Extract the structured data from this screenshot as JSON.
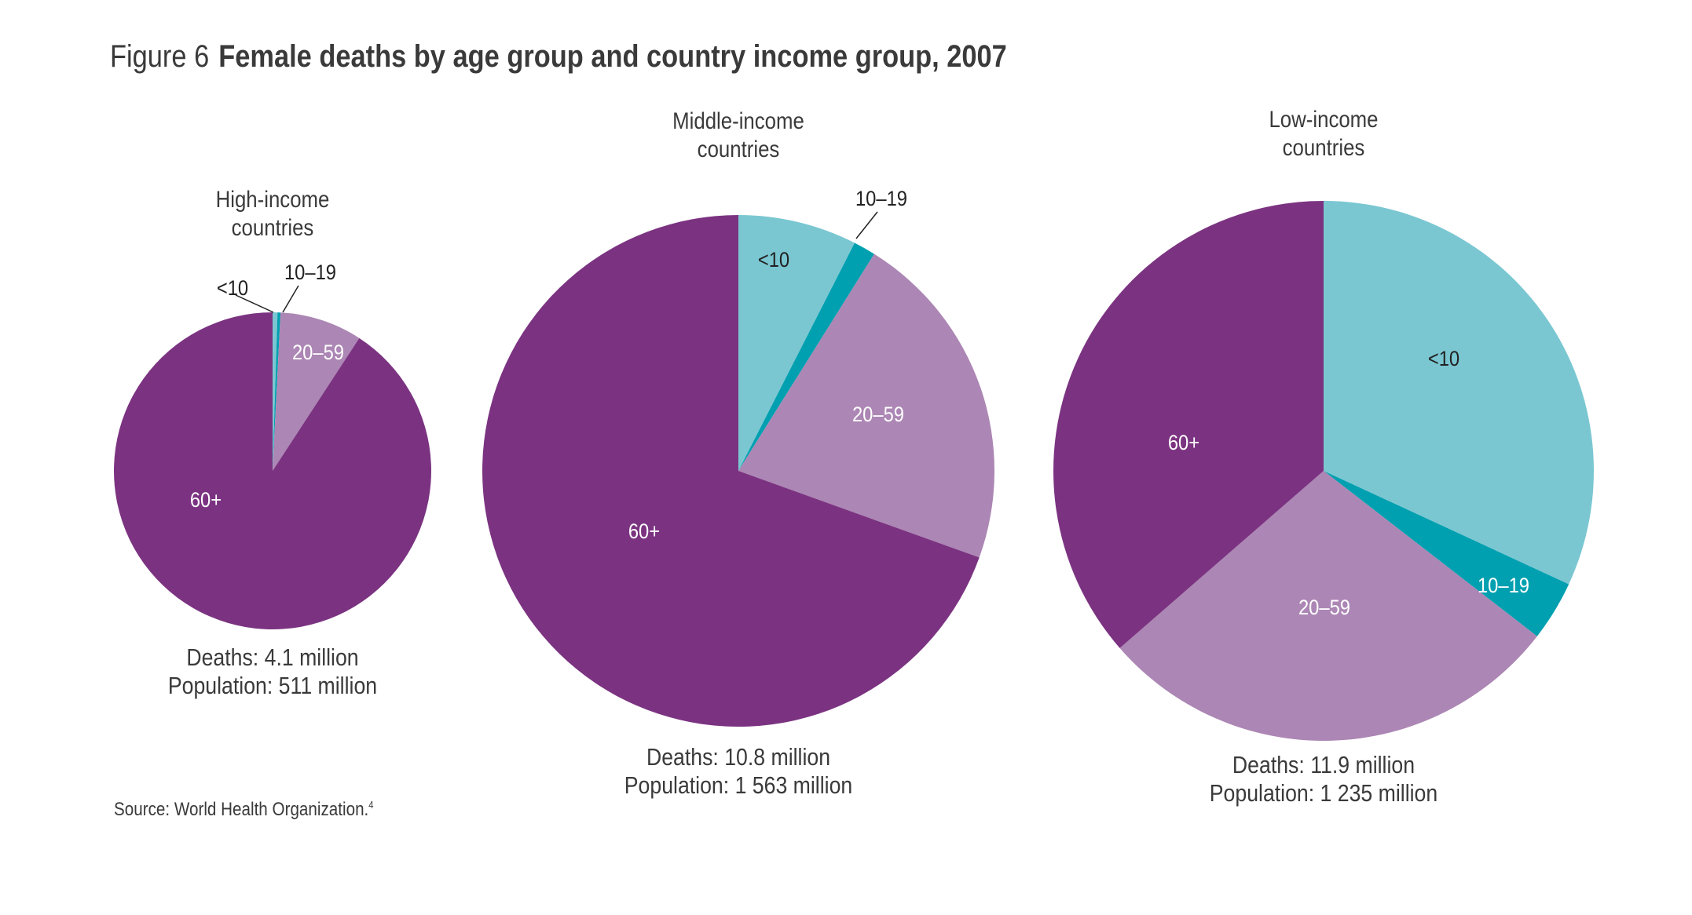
{
  "figure": {
    "number_label": "Figure 6",
    "title": "Female deaths by age group and country income group, 2007",
    "source_text": "Source: World Health Organization.",
    "source_ref": "4"
  },
  "chart_data": [
    {
      "type": "pie",
      "title_lines": [
        "High-income",
        "countries"
      ],
      "categories": [
        "<10",
        "10–19",
        "20–59",
        "60+"
      ],
      "values": [
        0.5,
        0.3,
        8.4,
        90.8
      ],
      "units": "percent of deaths",
      "colors": [
        "#7ac7d2",
        "#00a0b0",
        "#ac86b4",
        "#7b3381"
      ],
      "footer_lines": [
        "Deaths: 4.1 million",
        "Population: 511 million"
      ]
    },
    {
      "type": "pie",
      "title_lines": [
        "Middle-income",
        "countries"
      ],
      "categories": [
        "<10",
        "10–19",
        "20–59",
        "60+"
      ],
      "values": [
        7.5,
        1.4,
        21.6,
        69.5
      ],
      "units": "percent of deaths",
      "colors": [
        "#7ac7d2",
        "#00a0b0",
        "#ac86b4",
        "#7b3381"
      ],
      "footer_lines": [
        "Deaths: 10.8 million",
        "Population: 1 563 million"
      ]
    },
    {
      "type": "pie",
      "title_lines": [
        "Low-income",
        "countries"
      ],
      "categories": [
        "<10",
        "10–19",
        "20–59",
        "60+"
      ],
      "values": [
        31.9,
        3.6,
        28.1,
        36.4
      ],
      "units": "percent of deaths",
      "colors": [
        "#7ac7d2",
        "#00a0b0",
        "#ac86b4",
        "#7b3381"
      ],
      "footer_lines": [
        "Deaths: 11.9 million",
        "Population: 1 235 million"
      ]
    }
  ]
}
